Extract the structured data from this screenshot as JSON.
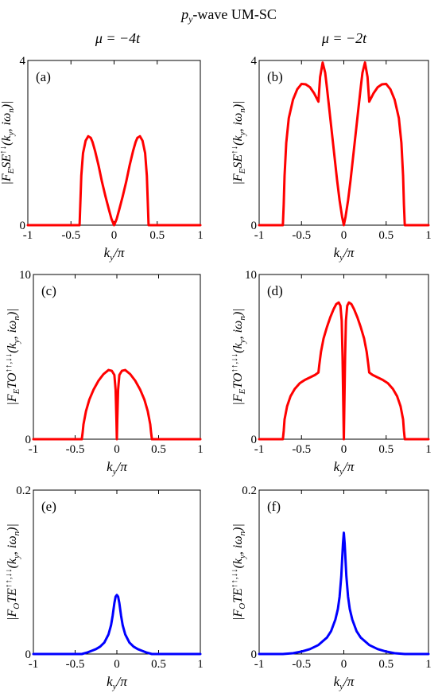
{
  "figure": {
    "title_parts": {
      "main": "p",
      "sub": "y",
      "rest": "-wave UM-SC"
    },
    "column_headers": [
      "μ = −4t",
      "μ = −2t"
    ]
  },
  "chart_data": [
    {
      "type": "line",
      "label": "(a)",
      "color": "#ff0000",
      "xlim": [
        -1,
        1
      ],
      "ylim": [
        0,
        4
      ],
      "xticks": [
        -1,
        -0.5,
        0,
        0.5,
        1
      ],
      "xtick_labels": [
        "-1",
        "-0.5",
        "0",
        "0.5",
        "1"
      ],
      "yticks": [
        0,
        4
      ],
      "ytick_labels": [
        "0",
        "4"
      ],
      "xlabel": "k_y/π",
      "ylabel": "|F_ESE^{↑↓}(k_y, iω_n)|",
      "series": [
        {
          "x": [
            -1,
            -0.4,
            -0.39,
            -0.38,
            -0.36,
            -0.33,
            -0.3,
            -0.27,
            -0.25,
            -0.22,
            -0.18,
            -0.14,
            -0.1,
            -0.06,
            -0.03,
            0,
            0.03,
            0.06,
            0.1,
            0.14,
            0.18,
            0.22,
            0.25,
            0.27,
            0.3,
            0.33,
            0.36,
            0.38,
            0.39,
            0.4,
            1
          ],
          "y": [
            0,
            0,
            0.6,
            1.2,
            1.75,
            2.05,
            2.16,
            2.12,
            2.02,
            1.8,
            1.45,
            1.05,
            0.7,
            0.38,
            0.15,
            0,
            0.15,
            0.38,
            0.7,
            1.05,
            1.45,
            1.8,
            2.02,
            2.12,
            2.16,
            2.05,
            1.75,
            1.2,
            0.6,
            0,
            0
          ]
        }
      ]
    },
    {
      "type": "line",
      "label": "(b)",
      "color": "#ff0000",
      "xlim": [
        -1,
        1
      ],
      "ylim": [
        0,
        4
      ],
      "xticks": [
        -1,
        -0.5,
        0,
        0.5,
        1
      ],
      "xtick_labels": [
        "-1",
        "-0.5",
        "0",
        "0.5",
        "1"
      ],
      "yticks": [
        0,
        4
      ],
      "ytick_labels": [
        "0",
        "4"
      ],
      "xlabel": "k_y/π",
      "ylabel": "|F_ESE^{↑↓}(k_y, iω_n)|",
      "series": [
        {
          "x": [
            -1,
            -0.72,
            -0.71,
            -0.7,
            -0.68,
            -0.65,
            -0.6,
            -0.55,
            -0.5,
            -0.45,
            -0.4,
            -0.35,
            -0.3,
            -0.28,
            -0.25,
            -0.22,
            -0.2,
            -0.16,
            -0.12,
            -0.08,
            -0.05,
            -0.02,
            0,
            0.02,
            0.05,
            0.08,
            0.12,
            0.16,
            0.2,
            0.22,
            0.25,
            0.28,
            0.3,
            0.35,
            0.4,
            0.45,
            0.5,
            0.55,
            0.6,
            0.65,
            0.68,
            0.7,
            0.71,
            0.72,
            1
          ],
          "y": [
            0,
            0,
            0.5,
            1.2,
            2.0,
            2.6,
            3.05,
            3.3,
            3.43,
            3.42,
            3.35,
            3.2,
            3.0,
            3.6,
            3.95,
            3.7,
            3.35,
            2.6,
            1.85,
            1.1,
            0.6,
            0.2,
            0,
            0.2,
            0.6,
            1.1,
            1.85,
            2.6,
            3.35,
            3.7,
            3.95,
            3.6,
            3.0,
            3.2,
            3.35,
            3.42,
            3.43,
            3.3,
            3.05,
            2.6,
            2.0,
            1.2,
            0.5,
            0,
            0
          ]
        }
      ]
    },
    {
      "type": "line",
      "label": "(c)",
      "color": "#ff0000",
      "xlim": [
        -1,
        1
      ],
      "ylim": [
        0,
        10
      ],
      "xticks": [
        -1,
        -0.5,
        0,
        0.5,
        1
      ],
      "xtick_labels": [
        "-1",
        "-0.5",
        "0",
        "0.5",
        "1"
      ],
      "yticks": [
        0,
        10
      ],
      "ytick_labels": [
        "0",
        "10"
      ],
      "xlabel": "k_y/π",
      "ylabel": "|F_ETO^{↑↑,↓↓}(k_y, iω_n)|",
      "series": [
        {
          "x": [
            -1,
            -0.42,
            -0.41,
            -0.4,
            -0.37,
            -0.33,
            -0.28,
            -0.22,
            -0.16,
            -0.1,
            -0.06,
            -0.03,
            -0.015,
            -0.005,
            0,
            0.005,
            0.015,
            0.03,
            0.06,
            0.1,
            0.16,
            0.22,
            0.28,
            0.33,
            0.37,
            0.4,
            0.41,
            0.42,
            1
          ],
          "y": [
            0,
            0,
            0.4,
            0.9,
            1.7,
            2.4,
            3.0,
            3.55,
            3.95,
            4.2,
            4.15,
            3.9,
            3.0,
            1.2,
            0,
            1.2,
            3.0,
            3.9,
            4.15,
            4.2,
            3.95,
            3.55,
            3.0,
            2.4,
            1.7,
            0.9,
            0.4,
            0,
            0
          ]
        }
      ]
    },
    {
      "type": "line",
      "label": "(d)",
      "color": "#ff0000",
      "xlim": [
        -1,
        1
      ],
      "ylim": [
        0,
        10
      ],
      "xticks": [
        -1,
        -0.5,
        0,
        0.5,
        1
      ],
      "xtick_labels": [
        "-1",
        "-0.5",
        "0",
        "0.5",
        "1"
      ],
      "yticks": [
        0,
        10
      ],
      "ytick_labels": [
        "0",
        "10"
      ],
      "xlabel": "k_y/π",
      "ylabel": "|F_ETO^{↑↑,↓↓}(k_y, iω_n)|",
      "series": [
        {
          "x": [
            -1,
            -0.72,
            -0.71,
            -0.7,
            -0.67,
            -0.63,
            -0.58,
            -0.52,
            -0.46,
            -0.4,
            -0.34,
            -0.3,
            -0.29,
            -0.27,
            -0.24,
            -0.2,
            -0.16,
            -0.12,
            -0.09,
            -0.06,
            -0.04,
            -0.025,
            -0.015,
            -0.006,
            0,
            0.006,
            0.015,
            0.025,
            0.04,
            0.06,
            0.09,
            0.12,
            0.16,
            0.2,
            0.24,
            0.27,
            0.29,
            0.3,
            0.34,
            0.4,
            0.46,
            0.52,
            0.58,
            0.63,
            0.67,
            0.7,
            0.71,
            0.72,
            1
          ],
          "y": [
            0,
            0,
            0.5,
            1.2,
            2.0,
            2.6,
            3.05,
            3.4,
            3.6,
            3.75,
            3.9,
            4.05,
            4.5,
            5.3,
            6.1,
            6.8,
            7.4,
            7.9,
            8.2,
            8.3,
            8.1,
            7.2,
            5.0,
            2.0,
            0,
            2.0,
            5.0,
            7.2,
            8.1,
            8.3,
            8.2,
            7.9,
            7.4,
            6.8,
            6.1,
            5.3,
            4.5,
            4.05,
            3.9,
            3.75,
            3.6,
            3.4,
            3.05,
            2.6,
            2.0,
            1.2,
            0.5,
            0,
            0
          ]
        }
      ]
    },
    {
      "type": "line",
      "label": "(e)",
      "color": "#0000ff",
      "xlim": [
        -1,
        1
      ],
      "ylim": [
        0,
        0.2
      ],
      "xticks": [
        -1,
        -0.5,
        0,
        0.5,
        1
      ],
      "xtick_labels": [
        "-1",
        "-0.5",
        "0",
        "0.5",
        "1"
      ],
      "yticks": [
        0,
        0.2
      ],
      "ytick_labels": [
        "0",
        "0.2"
      ],
      "xlabel": "k_y/π",
      "ylabel": "|F_OTE^{↑↑,↓↓}(k_y, iω_n)|",
      "series": [
        {
          "x": [
            -1,
            -0.42,
            -0.35,
            -0.3,
            -0.25,
            -0.2,
            -0.15,
            -0.1,
            -0.07,
            -0.05,
            -0.03,
            -0.015,
            0,
            0.015,
            0.03,
            0.05,
            0.07,
            0.1,
            0.15,
            0.2,
            0.25,
            0.3,
            0.35,
            0.42,
            1
          ],
          "y": [
            0,
            0,
            0.002,
            0.004,
            0.006,
            0.009,
            0.014,
            0.024,
            0.035,
            0.047,
            0.062,
            0.07,
            0.072,
            0.07,
            0.062,
            0.047,
            0.035,
            0.024,
            0.014,
            0.009,
            0.006,
            0.004,
            0.002,
            0,
            0
          ]
        }
      ]
    },
    {
      "type": "line",
      "label": "(f)",
      "color": "#0000ff",
      "xlim": [
        -1,
        1
      ],
      "ylim": [
        0,
        0.2
      ],
      "xticks": [
        -1,
        -0.5,
        0,
        0.5,
        1
      ],
      "xtick_labels": [
        "-1",
        "-0.5",
        "0",
        "0.5",
        "1"
      ],
      "yticks": [
        0,
        0.2
      ],
      "ytick_labels": [
        "0",
        "0.2"
      ],
      "xlabel": "k_y/π",
      "ylabel": "|F_OTE^{↑↑,↓↓}(k_y, iω_n)|",
      "series": [
        {
          "x": [
            -1,
            -0.72,
            -0.6,
            -0.5,
            -0.4,
            -0.3,
            -0.2,
            -0.15,
            -0.1,
            -0.07,
            -0.05,
            -0.03,
            -0.02,
            -0.01,
            0,
            0.01,
            0.02,
            0.03,
            0.05,
            0.07,
            0.1,
            0.15,
            0.2,
            0.3,
            0.4,
            0.5,
            0.6,
            0.72,
            1
          ],
          "y": [
            0,
            0,
            0.001,
            0.003,
            0.006,
            0.011,
            0.02,
            0.028,
            0.042,
            0.055,
            0.07,
            0.095,
            0.115,
            0.135,
            0.148,
            0.135,
            0.115,
            0.095,
            0.07,
            0.055,
            0.042,
            0.028,
            0.02,
            0.011,
            0.006,
            0.003,
            0.001,
            0,
            0
          ]
        }
      ]
    }
  ]
}
